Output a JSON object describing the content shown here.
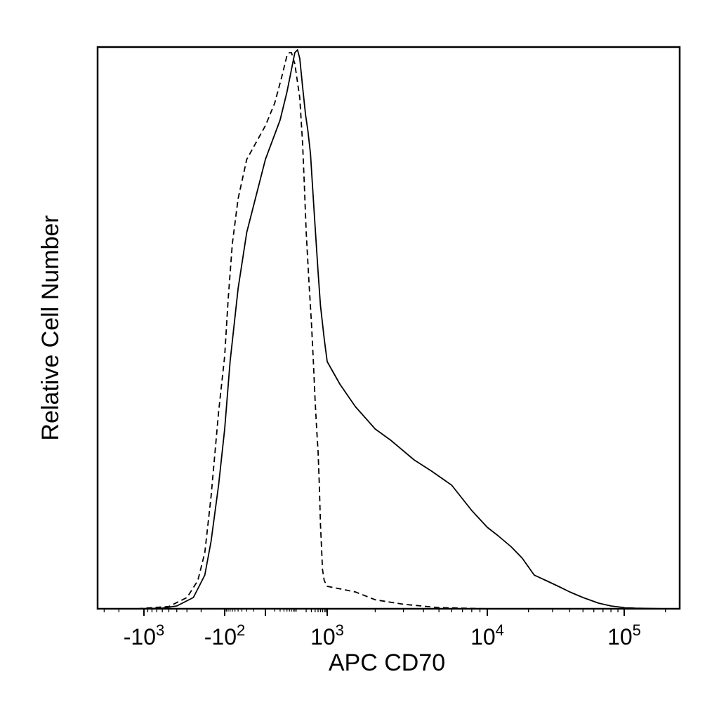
{
  "chart_data": {
    "type": "line",
    "title": "",
    "xlabel": "APC CD70",
    "ylabel": "Relative Cell Number",
    "x_scale": "biexponential",
    "x_ticks": [
      {
        "value": -1000,
        "base": "-10",
        "exp": "3"
      },
      {
        "value": -100,
        "base": "-10",
        "exp": "2"
      },
      {
        "value": 1000,
        "base": "10",
        "exp": "3"
      },
      {
        "value": 10000,
        "base": "10",
        "exp": "4"
      },
      {
        "value": 100000,
        "base": "10",
        "exp": "5"
      }
    ],
    "y_ticks": [],
    "ylim": [
      0,
      100
    ],
    "grid": false,
    "legend": "none",
    "series": [
      {
        "style": "dashed",
        "color": "#000000",
        "points": [
          [
            -1200,
            0
          ],
          [
            -500,
            0.4
          ],
          [
            -300,
            2
          ],
          [
            -220,
            5
          ],
          [
            -180,
            10
          ],
          [
            -150,
            20
          ],
          [
            -120,
            35
          ],
          [
            -100,
            45
          ],
          [
            -80,
            55
          ],
          [
            -60,
            65
          ],
          [
            -40,
            73
          ],
          [
            -20,
            80
          ],
          [
            0,
            86
          ],
          [
            10,
            90
          ],
          [
            25,
            95
          ],
          [
            40,
            98.5
          ],
          [
            50,
            99
          ],
          [
            60,
            99
          ],
          [
            80,
            97
          ],
          [
            120,
            91
          ],
          [
            150,
            83
          ],
          [
            175,
            75
          ],
          [
            200,
            67
          ],
          [
            250,
            58
          ],
          [
            300,
            51
          ],
          [
            350,
            44
          ],
          [
            400,
            37
          ],
          [
            450,
            32
          ],
          [
            500,
            28
          ],
          [
            550,
            22
          ],
          [
            600,
            15
          ],
          [
            650,
            11
          ],
          [
            700,
            7
          ],
          [
            800,
            5
          ],
          [
            1000,
            4
          ],
          [
            1500,
            3
          ],
          [
            2000,
            1.6
          ],
          [
            3000,
            0.8
          ],
          [
            5000,
            0.2
          ],
          [
            10000,
            0
          ]
        ]
      },
      {
        "style": "solid",
        "color": "#000000",
        "points": [
          [
            -1200,
            0
          ],
          [
            -600,
            0.1
          ],
          [
            -400,
            0.5
          ],
          [
            -250,
            2
          ],
          [
            -180,
            6
          ],
          [
            -150,
            12
          ],
          [
            -120,
            22
          ],
          [
            -100,
            32
          ],
          [
            -70,
            44
          ],
          [
            -40,
            57
          ],
          [
            -20,
            67
          ],
          [
            0,
            80
          ],
          [
            20,
            87
          ],
          [
            40,
            92
          ],
          [
            60,
            96
          ],
          [
            80,
            99
          ],
          [
            100,
            99.5
          ],
          [
            120,
            98
          ],
          [
            150,
            93
          ],
          [
            190,
            88
          ],
          [
            230,
            85
          ],
          [
            280,
            81
          ],
          [
            320,
            76
          ],
          [
            400,
            68
          ],
          [
            500,
            60
          ],
          [
            600,
            54
          ],
          [
            800,
            48
          ],
          [
            1000,
            44
          ],
          [
            1200,
            40
          ],
          [
            1500,
            36
          ],
          [
            2000,
            32
          ],
          [
            2500,
            30
          ],
          [
            3500,
            26.5
          ],
          [
            4500,
            24.5
          ],
          [
            6000,
            22
          ],
          [
            8000,
            17.5
          ],
          [
            10000,
            14.5
          ],
          [
            12000,
            13
          ],
          [
            15000,
            11
          ],
          [
            18000,
            9
          ],
          [
            22000,
            6
          ],
          [
            27000,
            5
          ],
          [
            33000,
            4
          ],
          [
            40000,
            3
          ],
          [
            50000,
            2
          ],
          [
            65000,
            1
          ],
          [
            80000,
            0.5
          ],
          [
            100000,
            0.2
          ],
          [
            120000,
            0.1
          ],
          [
            200000,
            0
          ]
        ]
      }
    ]
  }
}
